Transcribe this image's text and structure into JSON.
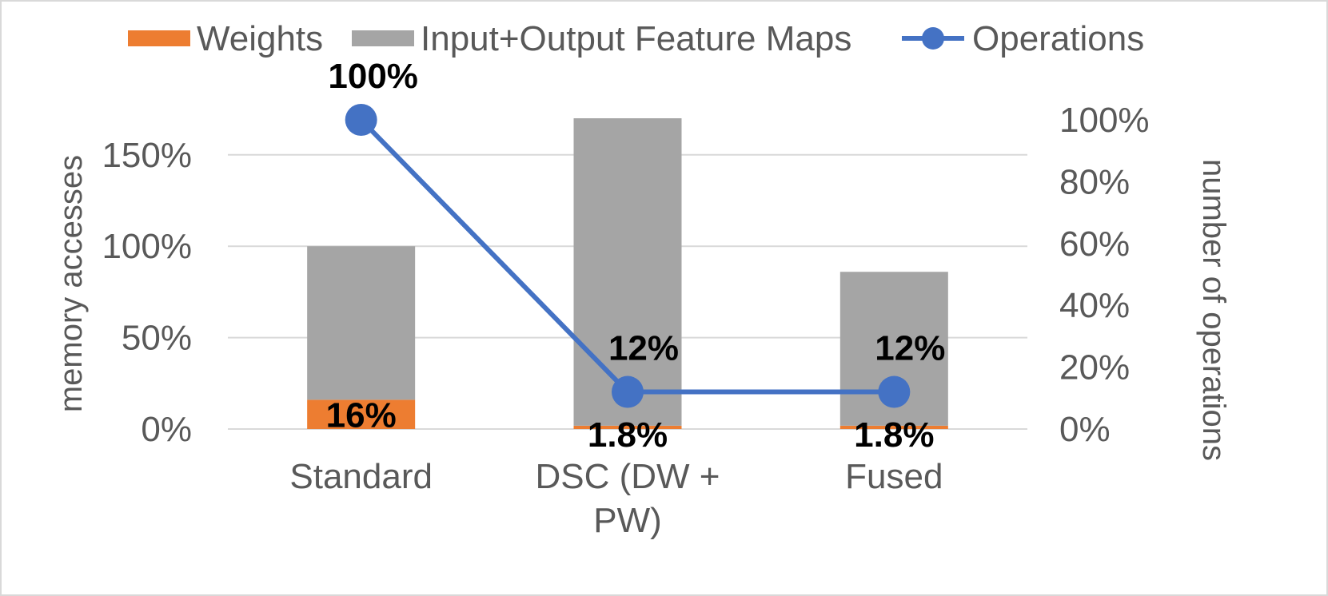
{
  "chart_data": {
    "type": "bar",
    "categories": [
      "Standard",
      "DSC (DW + PW)",
      "Fused"
    ],
    "category_lines": [
      [
        "Standard"
      ],
      [
        "DSC (DW +",
        "PW)"
      ],
      [
        "Fused"
      ]
    ],
    "series": [
      {
        "name": "Weights",
        "axis": "left",
        "kind": "bar-stacked",
        "color": "#ED7D31",
        "values": [
          16,
          1.8,
          1.8
        ],
        "labels": [
          "16%",
          "1.8%",
          "1.8%"
        ]
      },
      {
        "name": "Input+Output Feature Maps",
        "axis": "left",
        "kind": "bar-stacked",
        "color": "#A5A5A5",
        "values": [
          84,
          168.2,
          84.2
        ]
      },
      {
        "name": "Operations",
        "axis": "right",
        "kind": "line",
        "color": "#4472C4",
        "values": [
          100,
          12,
          12
        ],
        "labels": [
          "100%",
          "12%",
          "12%"
        ]
      }
    ],
    "ylabel": "memory accesses",
    "y2label": "number of operations",
    "ylim": [
      0,
      170
    ],
    "y2lim": [
      0,
      100
    ],
    "yticks": [
      "0%",
      "50%",
      "100%",
      "150%"
    ],
    "y2ticks": [
      "0%",
      "20%",
      "40%",
      "60%",
      "80%",
      "100%"
    ],
    "legend_position": "top",
    "grid": true
  }
}
